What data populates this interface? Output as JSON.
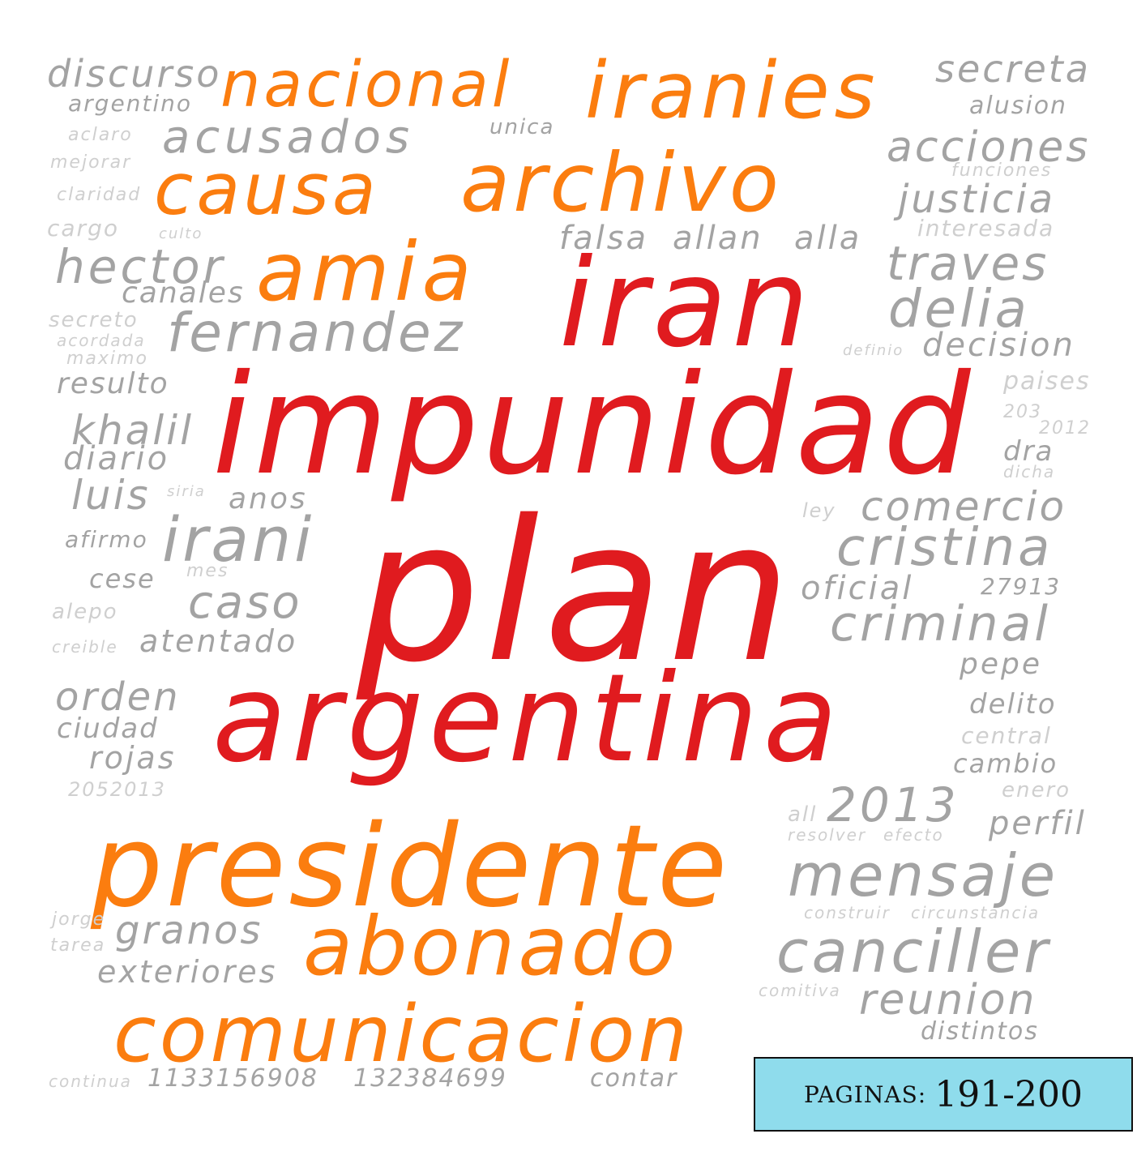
{
  "colors": {
    "primary": "#e01b1f",
    "secondary": "#fb7d0f",
    "neutral": "#a3a3a3",
    "faint": "#cfcfcf"
  },
  "badge": {
    "label": "PAGINAS:",
    "pages": "191-200"
  },
  "words": {
    "impunidad": "impunidad",
    "plan": "plan",
    "argentina": "argentina",
    "iran": "iran",
    "presidente": "presidente",
    "archivo": "archivo",
    "iranies": "iranies",
    "nacional": "nacional",
    "causa": "causa",
    "amia": "amia",
    "abonado": "abonado",
    "comunicacion": "comunicacion",
    "fernandez": "fernandez",
    "acusados": "acusados",
    "discurso": "discurso",
    "secreta": "secreta",
    "acciones": "acciones",
    "justicia": "justicia",
    "traves": "traves",
    "delia": "delia",
    "decision": "decision",
    "hector": "hector",
    "canales": "canales",
    "irani": "irani",
    "caso": "caso",
    "atentado": "atentado",
    "comercio": "comercio",
    "cristina": "cristina",
    "oficial": "oficial",
    "criminal": "criminal",
    "mensaje": "mensaje",
    "canciller": "canciller",
    "reunion": "reunion",
    "y2013": "2013",
    "granos": "granos",
    "exteriores": "exteriores",
    "khalil": "khalil",
    "diario": "diario",
    "luis": "luis",
    "anos": "anos",
    "orden": "orden",
    "ciudad": "ciudad",
    "rojas": "rojas",
    "falsa": "falsa",
    "allan": "allan",
    "alla": "alla",
    "unica": "unica",
    "argentino": "argentino",
    "alusion": "alusion",
    "funciones": "funciones",
    "interesada": "interesada",
    "paises": "paises",
    "pepe": "pepe",
    "delito": "delito",
    "central": "central",
    "cambio": "cambio",
    "enero": "enero",
    "perfil": "perfil",
    "distintos": "distintos",
    "n27913": "27913",
    "n1133156908": "1133156908",
    "n132384699": "132384699",
    "contar": "contar",
    "resulto": "resulto",
    "cese": "cese",
    "alepo": "alepo",
    "cargo": "cargo",
    "secreto": "secreto",
    "mejorar": "mejorar",
    "claridad": "claridad",
    "aclaro": "aclaro",
    "maximo": "maximo",
    "acordada": "acordada",
    "afirmo": "afirmo",
    "creible": "creible",
    "n2052013": "2052013",
    "continua": "continua",
    "jorge": "jorge",
    "tarea": "tarea",
    "construir": "construir",
    "circunstancia": "circunstancia",
    "resolver": "resolver",
    "efecto": "efecto",
    "comitiva": "comitiva",
    "dra": "dra",
    "dicha": "dicha",
    "ley": "ley",
    "mes": "mes",
    "all": "all",
    "culto": "culto",
    "siria": "siria",
    "n2012": "2012",
    "n203": "203",
    "definio": "definio"
  }
}
